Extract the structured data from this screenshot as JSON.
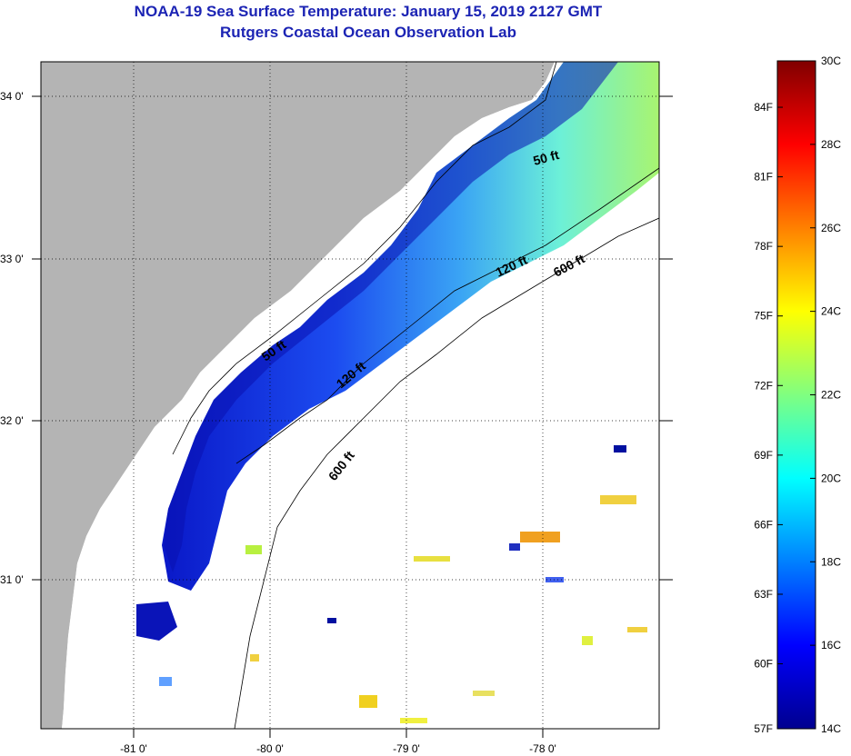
{
  "title": {
    "line1": "NOAA-19 Sea Surface Temperature:  January 15, 2019 2127 GMT",
    "line2": "Rutgers Coastal Ocean Observation Lab"
  },
  "map": {
    "lat_labels": [
      "34 0'",
      "33 0'",
      "32 0'",
      "31 0'"
    ],
    "lon_labels": [
      "-81 0'",
      "-80 0'",
      "-79 0'",
      "-78 0'"
    ],
    "contours": [
      {
        "name": "50 ft",
        "label": "50 ft"
      },
      {
        "name": "50 ft",
        "label": "50 ft"
      },
      {
        "name": "120 ft",
        "label": "120 ft"
      },
      {
        "name": "120 ft",
        "label": "120 ft"
      },
      {
        "name": "600 ft",
        "label": "600 ft"
      },
      {
        "name": "600 ft",
        "label": "600 ft"
      }
    ]
  },
  "colorbar": {
    "fahrenheit": [
      "84F",
      "81F",
      "78F",
      "75F",
      "72F",
      "69F",
      "66F",
      "63F",
      "60F",
      "57F"
    ],
    "celsius": [
      "30C",
      "28C",
      "26C",
      "24C",
      "22C",
      "20C",
      "18C",
      "16C",
      "14C"
    ],
    "colors": [
      "#00008f",
      "#0000ff",
      "#0080ff",
      "#00ffff",
      "#80ff80",
      "#ffff00",
      "#ff8000",
      "#ff0000",
      "#800000"
    ]
  }
}
